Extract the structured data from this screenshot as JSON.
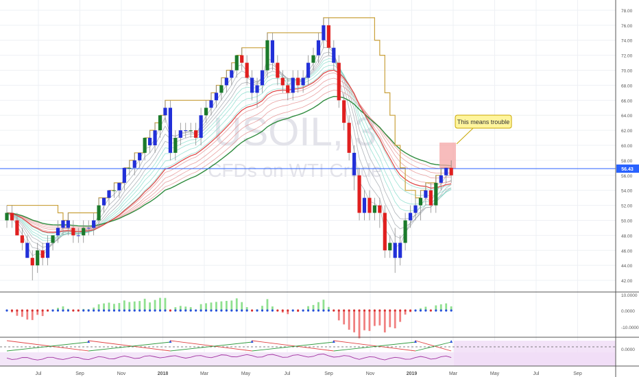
{
  "chart_data": {
    "type": "candlestick",
    "watermark": {
      "symbol": "USOIL, 3",
      "description": "CFDs on WTI Crude"
    },
    "price_axis": {
      "ylim": [
        41,
        79
      ],
      "ticks": [
        "78.00",
        "76.00",
        "74.00",
        "72.00",
        "70.00",
        "68.00",
        "66.00",
        "64.00",
        "62.00",
        "60.00",
        "58.00",
        "56.00",
        "54.00",
        "52.00",
        "50.00",
        "48.00",
        "46.00",
        "44.00",
        "42.00"
      ]
    },
    "last_price": "56.43",
    "last_price_color": "#2962ff",
    "time_axis": {
      "labels": [
        "Jul",
        "Sep",
        "Nov",
        "2018",
        "Mar",
        "May",
        "Jul",
        "Sep",
        "Nov",
        "2019",
        "Mar",
        "May",
        "Jul",
        "Sep"
      ],
      "bold_labels": [
        "2018",
        "2019"
      ]
    },
    "annotation": {
      "text": "This means trouble",
      "box_color": "#fff59d",
      "highlight_color": "#f4a6a6"
    },
    "candles": [
      [
        50,
        52,
        49,
        51
      ],
      [
        51,
        52,
        49,
        50
      ],
      [
        50,
        51,
        48,
        48
      ],
      [
        48,
        49,
        46,
        47
      ],
      [
        47,
        48,
        45,
        45
      ],
      [
        45,
        46,
        42,
        44
      ],
      [
        44,
        47,
        43,
        46
      ],
      [
        46,
        47,
        44,
        45
      ],
      [
        45,
        48,
        44,
        47
      ],
      [
        47,
        48,
        46,
        48
      ],
      [
        48,
        50,
        47,
        49
      ],
      [
        49,
        50,
        48,
        50
      ],
      [
        50,
        51,
        48,
        49
      ],
      [
        49,
        50,
        47,
        48
      ],
      [
        48,
        49,
        47,
        48
      ],
      [
        48,
        50,
        47,
        49
      ],
      [
        49,
        50,
        48,
        49
      ],
      [
        49,
        51,
        48,
        50
      ],
      [
        50,
        53,
        49,
        52
      ],
      [
        52,
        53,
        51,
        53
      ],
      [
        53,
        54,
        52,
        54
      ],
      [
        54,
        55,
        53,
        54
      ],
      [
        54,
        55,
        53,
        55
      ],
      [
        55,
        57,
        54,
        57
      ],
      [
        57,
        58,
        56,
        57
      ],
      [
        57,
        59,
        56,
        58
      ],
      [
        58,
        59,
        57,
        59
      ],
      [
        59,
        61,
        58,
        61
      ],
      [
        61,
        62,
        59,
        60
      ],
      [
        60,
        63,
        59,
        62
      ],
      [
        62,
        64,
        61,
        64
      ],
      [
        64,
        66,
        63,
        65
      ],
      [
        65,
        66,
        58,
        59
      ],
      [
        59,
        62,
        58,
        61
      ],
      [
        61,
        63,
        60,
        62
      ],
      [
        62,
        63,
        61,
        62
      ],
      [
        62,
        63,
        61,
        62
      ],
      [
        62,
        63,
        60,
        61
      ],
      [
        61,
        65,
        60,
        64
      ],
      [
        64,
        66,
        63,
        65
      ],
      [
        65,
        67,
        64,
        66
      ],
      [
        66,
        68,
        65,
        67
      ],
      [
        67,
        69,
        66,
        68
      ],
      [
        68,
        70,
        67,
        69
      ],
      [
        69,
        71,
        68,
        70
      ],
      [
        70,
        72,
        69,
        72
      ],
      [
        72,
        73,
        70,
        71
      ],
      [
        71,
        72,
        68,
        69
      ],
      [
        69,
        70,
        66,
        67
      ],
      [
        67,
        69,
        65,
        68
      ],
      [
        68,
        73,
        67,
        70
      ],
      [
        70,
        75,
        69,
        74
      ],
      [
        74,
        75,
        70,
        71
      ],
      [
        71,
        72,
        68,
        69
      ],
      [
        69,
        70,
        67,
        68
      ],
      [
        68,
        69,
        66,
        67
      ],
      [
        67,
        70,
        66,
        69
      ],
      [
        69,
        70,
        67,
        68
      ],
      [
        68,
        70,
        67,
        69
      ],
      [
        69,
        72,
        68,
        71
      ],
      [
        71,
        73,
        70,
        72
      ],
      [
        72,
        75,
        71,
        74
      ],
      [
        74,
        77,
        73,
        76
      ],
      [
        76,
        77,
        72,
        73
      ],
      [
        73,
        74,
        70,
        71
      ],
      [
        71,
        72,
        65,
        66
      ],
      [
        66,
        67,
        62,
        63
      ],
      [
        63,
        64,
        58,
        59
      ],
      [
        59,
        60,
        54,
        56
      ],
      [
        56,
        57,
        50,
        51
      ],
      [
        51,
        54,
        50,
        53
      ],
      [
        53,
        54,
        50,
        51
      ],
      [
        51,
        53,
        50,
        52
      ],
      [
        52,
        53,
        49,
        51
      ],
      [
        51,
        52,
        45,
        46
      ],
      [
        46,
        48,
        45,
        47
      ],
      [
        47,
        49,
        43,
        45
      ],
      [
        45,
        48,
        44,
        47
      ],
      [
        47,
        51,
        46,
        50
      ],
      [
        50,
        52,
        49,
        51
      ],
      [
        51,
        53,
        50,
        52
      ],
      [
        52,
        54,
        50,
        53
      ],
      [
        53,
        55,
        52,
        54
      ],
      [
        54,
        55,
        51,
        52
      ],
      [
        52,
        56,
        51,
        55
      ],
      [
        55,
        57,
        54,
        56
      ],
      [
        56,
        57,
        55,
        57
      ],
      [
        57,
        58,
        55,
        56
      ]
    ],
    "ribbon_length": 45,
    "panels": [
      {
        "name": "histogram",
        "ticks": [
          "10.0000",
          "0.0000",
          "-10.0000"
        ]
      },
      {
        "name": "lines",
        "ticks": [
          "0.0000"
        ]
      }
    ]
  }
}
